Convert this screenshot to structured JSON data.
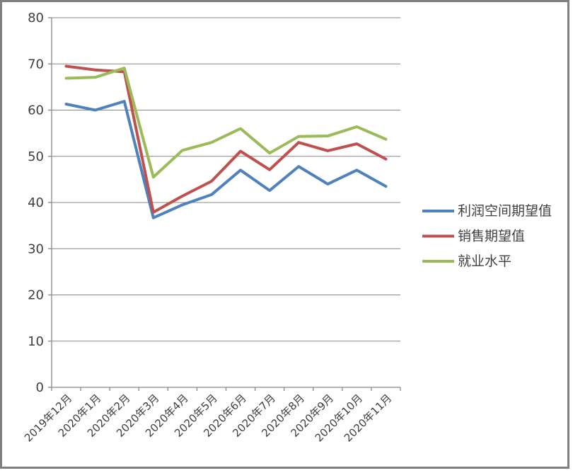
{
  "window": {
    "background": "#ffffff",
    "frame_border_color": "#7f7f7f"
  },
  "chart_data": {
    "type": "line",
    "title": "",
    "xlabel": "",
    "ylabel": "",
    "categories": [
      "2019年12月",
      "2020年1月",
      "2020年2月",
      "2020年3月",
      "2020年4月",
      "2020年5月",
      "2020年6月",
      "2020年7月",
      "2020年8月",
      "2020年9月",
      "2020年10月",
      "2020年11月"
    ],
    "series": [
      {
        "name": "利润空间期望值",
        "color": "#4F81BD",
        "values": [
          61.3,
          60.0,
          61.9,
          36.7,
          39.5,
          41.7,
          47.0,
          42.6,
          47.8,
          44.0,
          47.0,
          43.5
        ]
      },
      {
        "name": "销售期望值",
        "color": "#C0504D",
        "values": [
          69.5,
          68.7,
          68.3,
          37.9,
          41.4,
          44.6,
          51.1,
          47.1,
          53.0,
          51.2,
          52.7,
          49.4
        ]
      },
      {
        "name": "就业水平",
        "color": "#9BBB59",
        "values": [
          66.9,
          67.1,
          69.1,
          45.5,
          51.3,
          53.0,
          56.0,
          50.7,
          54.3,
          54.4,
          56.4,
          53.7
        ]
      }
    ],
    "ylim": [
      0,
      80
    ],
    "ytick_step": 10,
    "ytick_labels": [
      "0",
      "10",
      "20",
      "30",
      "40",
      "50",
      "60",
      "70",
      "80"
    ],
    "grid": true,
    "legend_position": "right",
    "gridline_color": "#878787",
    "axis_color": "#878787",
    "text_color": "#3f3f3f",
    "x_label_rotation_deg": -45
  }
}
